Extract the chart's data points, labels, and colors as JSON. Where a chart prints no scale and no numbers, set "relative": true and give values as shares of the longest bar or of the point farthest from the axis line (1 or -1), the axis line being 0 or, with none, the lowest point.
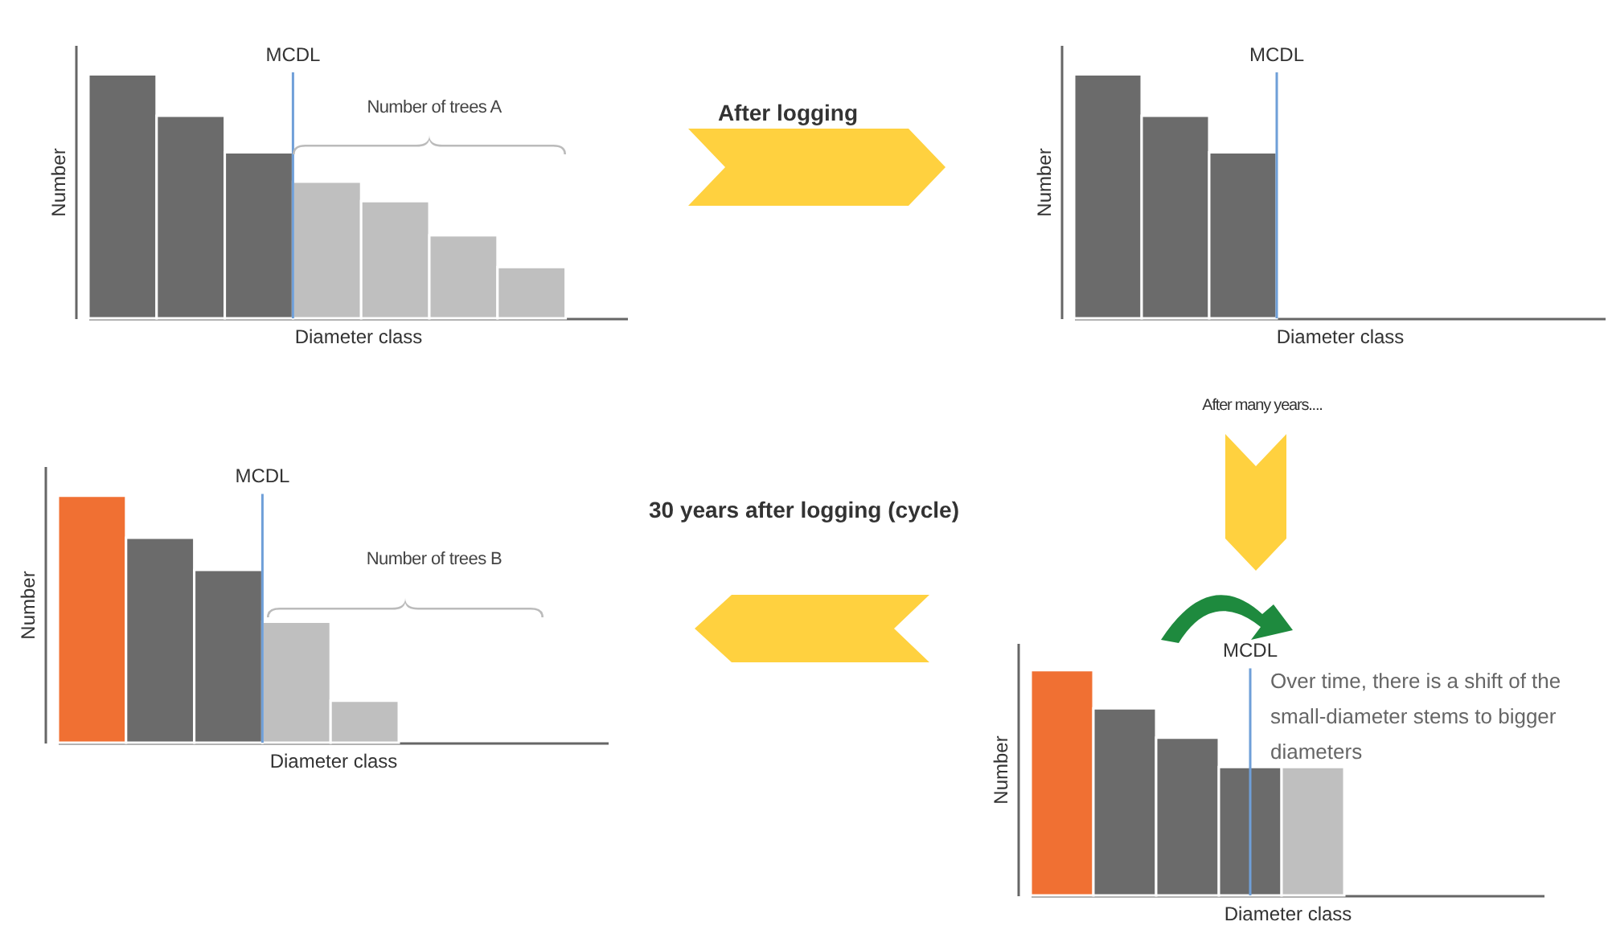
{
  "chart_data": [
    {
      "type": "bar",
      "categories": [
        null,
        null,
        null,
        null,
        null,
        null,
        null
      ],
      "values": [
        1,
        0.83,
        0.68,
        0.56,
        0.48,
        0.34,
        0.21
      ],
      "colors": [
        "#6b6b6b",
        "#6b6b6b",
        "#6b6b6b",
        "#bfbfbf",
        "#bfbfbf",
        "#bfbfbf",
        "#bfbfbf"
      ],
      "relative": true,
      "xlabel": "Diameter class",
      "ylabel": "Number",
      "annotations": [
        "MCDL",
        "Number of trees A",
        "After logging"
      ]
    },
    {
      "type": "bar",
      "categories": [
        null,
        null,
        null
      ],
      "values": [
        1,
        0.83,
        0.68
      ],
      "colors": [
        "#6b6b6b",
        "#6b6b6b",
        "#6b6b6b"
      ],
      "relative": true,
      "xlabel": "Diameter class",
      "ylabel": "Number",
      "annotations": [
        "MCDL",
        "After many years...."
      ]
    },
    {
      "type": "bar",
      "categories": [
        null,
        null,
        null,
        null,
        null
      ],
      "values": [
        1,
        0.83,
        0.7,
        0.49,
        0.17
      ],
      "colors": [
        "#f07033",
        "#6b6b6b",
        "#6b6b6b",
        "#bfbfbf",
        "#bfbfbf"
      ],
      "relative": true,
      "xlabel": "Diameter class",
      "ylabel": "Number",
      "annotations": [
        "MCDL",
        "Number of trees B"
      ]
    },
    {
      "type": "bar",
      "categories": [
        null,
        null,
        null,
        null,
        null
      ],
      "values": [
        1,
        0.83,
        0.7,
        0.57,
        0.57
      ],
      "colors": [
        "#f07033",
        "#6b6b6b",
        "#6b6b6b",
        "#6b6b6b",
        "#bfbfbf"
      ],
      "relative": true,
      "xlabel": "Diameter class",
      "ylabel": "Number",
      "annotations": [
        "MCDL",
        "30 years after logging (cycle)",
        "Over time, there is a shift of the small-diameter stems to bigger diameters"
      ]
    }
  ]
}
